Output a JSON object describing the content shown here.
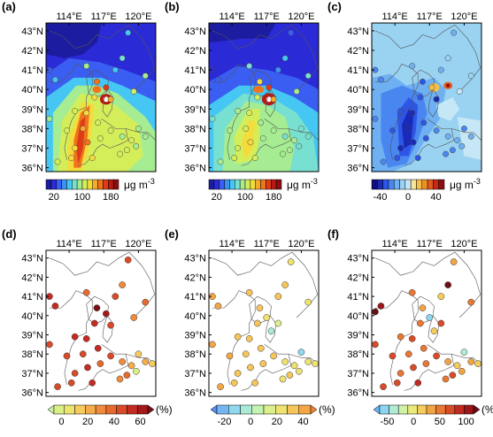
{
  "panels": [
    {
      "label": "(a)",
      "kind": "field",
      "lon_ticks": [
        "114°E",
        "117°E",
        "120°E"
      ],
      "lat_ticks": [
        "43°N",
        "42°N",
        "41°N",
        "40°N",
        "39°N",
        "38°N",
        "37°N",
        "36°N"
      ],
      "colorbar": {
        "ticks": [
          "20",
          "100",
          "180"
        ],
        "unit_text": "μg m",
        "unit_exp": "-3",
        "colors": [
          "#1c1ca0",
          "#2a2ad6",
          "#3a5ef2",
          "#3c92f4",
          "#46c6f2",
          "#78e0d0",
          "#a6ec92",
          "#d4ee5a",
          "#f4dc3c",
          "#f6aa2a",
          "#f0741e",
          "#dc3c16",
          "#b81a12",
          "#8a0e12"
        ],
        "style": "boxes"
      }
    },
    {
      "label": "(b)",
      "kind": "field",
      "lon_ticks": [
        "114°E",
        "117°E",
        "120°E"
      ],
      "lat_ticks": [
        "43°N",
        "42°N",
        "41°N",
        "40°N",
        "39°N",
        "38°N",
        "37°N",
        "36°N"
      ],
      "colorbar": {
        "ticks": [
          "20",
          "100",
          "180"
        ],
        "unit_text": "μg m",
        "unit_exp": "-3",
        "colors": [
          "#1c1ca0",
          "#2a2ad6",
          "#3a5ef2",
          "#3c92f4",
          "#46c6f2",
          "#78e0d0",
          "#a6ec92",
          "#d4ee5a",
          "#f4dc3c",
          "#f6aa2a",
          "#f0741e",
          "#dc3c16",
          "#b81a12",
          "#8a0e12"
        ],
        "style": "boxes"
      }
    },
    {
      "label": "(c)",
      "kind": "field",
      "lon_ticks": [
        "114°E",
        "117°E",
        "120°E"
      ],
      "lat_ticks": [
        "43°N",
        "42°N",
        "41°N",
        "40°N",
        "39°N",
        "38°N",
        "37°N",
        "36°N"
      ],
      "colorbar": {
        "ticks": [
          "-40",
          "0",
          "40"
        ],
        "unit_text": "μg m",
        "unit_exp": "-3",
        "colors": [
          "#10107a",
          "#1a2ab8",
          "#2e56e6",
          "#4a86f0",
          "#6eb0f2",
          "#9ad2f2",
          "#c6e8f6",
          "#f6e49a",
          "#f4c04a",
          "#ee902a",
          "#e05a1e",
          "#c42816",
          "#8a0e10"
        ],
        "style": "boxes"
      }
    },
    {
      "label": "(d)",
      "kind": "points",
      "lon_ticks": [
        "114°E",
        "117°E",
        "120°E"
      ],
      "lat_ticks": [
        "43°N",
        "42°N",
        "41°N",
        "40°N",
        "39°N",
        "38°N",
        "37°N",
        "36°N"
      ],
      "colorbar": {
        "ticks": [
          "0",
          "20",
          "40",
          "60"
        ],
        "unit_text": "(%)",
        "colors": [
          "#c8f2a8",
          "#dcef86",
          "#eee470",
          "#f6cc5c",
          "#f6ac4c",
          "#f08a3c",
          "#e66a30",
          "#d84a28",
          "#c42c22",
          "#a41a1c",
          "#7c0e16"
        ],
        "style": "triangles"
      }
    },
    {
      "label": "(e)",
      "kind": "points",
      "lon_ticks": [
        "114°E",
        "117°E",
        "120°E"
      ],
      "lat_ticks": [
        "43°N",
        "42°N",
        "41°N",
        "40°N",
        "39°N",
        "38°N",
        "37°N",
        "36°N"
      ],
      "colorbar": {
        "ticks": [
          "-20",
          "0",
          "20",
          "40"
        ],
        "unit_text": "(%)",
        "colors": [
          "#5a8ef0",
          "#74b6f2",
          "#90d8f0",
          "#a8ecd8",
          "#c4f2b0",
          "#dcf08c",
          "#eee270",
          "#f6c65a",
          "#f4a646",
          "#ec8234"
        ],
        "style": "triangles"
      }
    },
    {
      "label": "(f)",
      "kind": "points",
      "lon_ticks": [
        "114°E",
        "117°E",
        "120°E"
      ],
      "lat_ticks": [
        "43°N",
        "42°N",
        "41°N",
        "40°N",
        "39°N",
        "38°N",
        "37°N",
        "36°N"
      ],
      "colorbar": {
        "ticks": [
          "-50",
          "0",
          "50",
          "100"
        ],
        "unit_text": "(%)",
        "colors": [
          "#6ab2f2",
          "#8cd4f0",
          "#b0ecd4",
          "#d0f2a4",
          "#e8ea7a",
          "#f6cc5c",
          "#f2a444",
          "#e87834",
          "#d84c28",
          "#c02a20",
          "#9c161a",
          "#6e0c14"
        ],
        "style": "triangles"
      }
    }
  ],
  "stations": {
    "d": [
      {
        "lon": 119.1,
        "lat": 42.9,
        "color": "#d84a28"
      },
      {
        "lon": 112.3,
        "lat": 41.0,
        "color": "#c42c22"
      },
      {
        "lon": 115.5,
        "lat": 41.2,
        "color": "#e66a30"
      },
      {
        "lon": 118.6,
        "lat": 41.6,
        "color": "#f08a3c"
      },
      {
        "lon": 118.0,
        "lat": 41.0,
        "color": "#d84a28"
      },
      {
        "lon": 112.8,
        "lat": 40.5,
        "color": "#c42c22"
      },
      {
        "lon": 116.4,
        "lat": 40.4,
        "color": "#7c0e16"
      },
      {
        "lon": 117.2,
        "lat": 40.1,
        "color": "#a41a1c"
      },
      {
        "lon": 116.2,
        "lat": 39.6,
        "color": "#c42c22"
      },
      {
        "lon": 117.6,
        "lat": 39.5,
        "color": "#d84a28"
      },
      {
        "lon": 119.6,
        "lat": 39.9,
        "color": "#f08a3c"
      },
      {
        "lon": 120.6,
        "lat": 40.7,
        "color": "#e66a30"
      },
      {
        "lon": 112.3,
        "lat": 38.5,
        "color": "#d84a28"
      },
      {
        "lon": 114.5,
        "lat": 38.9,
        "color": "#c42c22"
      },
      {
        "lon": 115.5,
        "lat": 38.8,
        "color": "#c42c22"
      },
      {
        "lon": 113.8,
        "lat": 37.9,
        "color": "#d84a28"
      },
      {
        "lon": 115.2,
        "lat": 38.0,
        "color": "#d84a28"
      },
      {
        "lon": 116.5,
        "lat": 38.3,
        "color": "#c42c22"
      },
      {
        "lon": 117.6,
        "lat": 37.9,
        "color": "#d84a28"
      },
      {
        "lon": 114.5,
        "lat": 37.0,
        "color": "#d84a28"
      },
      {
        "lon": 115.6,
        "lat": 37.3,
        "color": "#c42c22"
      },
      {
        "lon": 116.7,
        "lat": 37.5,
        "color": "#e66a30"
      },
      {
        "lon": 118.6,
        "lat": 37.6,
        "color": "#f08a3c"
      },
      {
        "lon": 119.4,
        "lat": 37.4,
        "color": "#f6ac4c"
      },
      {
        "lon": 120.0,
        "lat": 38.0,
        "color": "#f6cc5c"
      },
      {
        "lon": 120.6,
        "lat": 37.6,
        "color": "#f6ac4c"
      },
      {
        "lon": 118.4,
        "lat": 36.7,
        "color": "#f08a3c"
      },
      {
        "lon": 119.0,
        "lat": 36.9,
        "color": "#e66a30"
      },
      {
        "lon": 119.8,
        "lat": 37.1,
        "color": "#dcef86"
      },
      {
        "lon": 121.2,
        "lat": 37.5,
        "color": "#f6cc5c"
      },
      {
        "lon": 113.0,
        "lat": 36.3,
        "color": "#d84a28"
      },
      {
        "lon": 114.2,
        "lat": 36.5,
        "color": "#d84a28"
      },
      {
        "lon": 116.0,
        "lat": 36.5,
        "color": "#c42c22"
      }
    ],
    "e": [
      {
        "lon": 119.1,
        "lat": 42.8,
        "color": "#eee270"
      },
      {
        "lon": 112.3,
        "lat": 41.0,
        "color": "#f4a646"
      },
      {
        "lon": 115.5,
        "lat": 41.2,
        "color": "#f6c65a"
      },
      {
        "lon": 118.6,
        "lat": 41.6,
        "color": "#f6c65a"
      },
      {
        "lon": 118.0,
        "lat": 41.0,
        "color": "#f6c65a"
      },
      {
        "lon": 112.8,
        "lat": 40.5,
        "color": "#f4a646"
      },
      {
        "lon": 116.4,
        "lat": 40.4,
        "color": "#f6c65a"
      },
      {
        "lon": 117.0,
        "lat": 39.9,
        "color": "#eee270"
      },
      {
        "lon": 116.2,
        "lat": 39.6,
        "color": "#f6c65a"
      },
      {
        "lon": 117.4,
        "lat": 39.2,
        "color": "#a8ecd8"
      },
      {
        "lon": 118.0,
        "lat": 39.6,
        "color": "#dcf08c"
      },
      {
        "lon": 120.6,
        "lat": 40.7,
        "color": "#eee270"
      },
      {
        "lon": 112.3,
        "lat": 38.5,
        "color": "#f4a646"
      },
      {
        "lon": 114.5,
        "lat": 38.9,
        "color": "#f6c65a"
      },
      {
        "lon": 115.5,
        "lat": 38.8,
        "color": "#f6c65a"
      },
      {
        "lon": 113.8,
        "lat": 37.9,
        "color": "#f4a646"
      },
      {
        "lon": 115.2,
        "lat": 38.0,
        "color": "#f6c65a"
      },
      {
        "lon": 116.5,
        "lat": 38.3,
        "color": "#f6c65a"
      },
      {
        "lon": 117.6,
        "lat": 37.9,
        "color": "#f6c65a"
      },
      {
        "lon": 114.5,
        "lat": 37.0,
        "color": "#f6c65a"
      },
      {
        "lon": 115.6,
        "lat": 37.3,
        "color": "#f6c65a"
      },
      {
        "lon": 116.7,
        "lat": 37.5,
        "color": "#f6c65a"
      },
      {
        "lon": 118.6,
        "lat": 37.6,
        "color": "#eee270"
      },
      {
        "lon": 119.4,
        "lat": 37.4,
        "color": "#eee270"
      },
      {
        "lon": 120.0,
        "lat": 38.1,
        "color": "#90d8f0"
      },
      {
        "lon": 120.6,
        "lat": 37.6,
        "color": "#eee270"
      },
      {
        "lon": 118.4,
        "lat": 36.7,
        "color": "#eee270"
      },
      {
        "lon": 119.0,
        "lat": 36.9,
        "color": "#f6c65a"
      },
      {
        "lon": 119.8,
        "lat": 37.1,
        "color": "#eee270"
      },
      {
        "lon": 121.2,
        "lat": 37.5,
        "color": "#eee270"
      },
      {
        "lon": 113.0,
        "lat": 36.3,
        "color": "#f4a646"
      },
      {
        "lon": 114.2,
        "lat": 36.5,
        "color": "#f6c65a"
      },
      {
        "lon": 116.0,
        "lat": 36.5,
        "color": "#f6c65a"
      }
    ],
    "f": [
      {
        "lon": 119.1,
        "lat": 42.8,
        "color": "#f2a444"
      },
      {
        "lon": 112.3,
        "lat": 40.2,
        "color": "#6e0c14"
      },
      {
        "lon": 115.5,
        "lat": 41.2,
        "color": "#e87834"
      },
      {
        "lon": 118.6,
        "lat": 41.6,
        "color": "#6e0c14"
      },
      {
        "lon": 118.0,
        "lat": 41.0,
        "color": "#f6cc5c"
      },
      {
        "lon": 112.8,
        "lat": 40.5,
        "color": "#9c161a"
      },
      {
        "lon": 116.4,
        "lat": 40.4,
        "color": "#f2a444"
      },
      {
        "lon": 117.0,
        "lat": 39.9,
        "color": "#8cd4f0"
      },
      {
        "lon": 116.2,
        "lat": 39.6,
        "color": "#e87834"
      },
      {
        "lon": 117.4,
        "lat": 39.2,
        "color": "#f6cc5c"
      },
      {
        "lon": 118.0,
        "lat": 39.6,
        "color": "#d84c28"
      },
      {
        "lon": 120.6,
        "lat": 40.7,
        "color": "#e87834"
      },
      {
        "lon": 112.3,
        "lat": 38.5,
        "color": "#d84c28"
      },
      {
        "lon": 114.5,
        "lat": 38.9,
        "color": "#e87834"
      },
      {
        "lon": 115.5,
        "lat": 38.8,
        "color": "#d84c28"
      },
      {
        "lon": 113.8,
        "lat": 37.9,
        "color": "#d84c28"
      },
      {
        "lon": 115.2,
        "lat": 38.0,
        "color": "#e87834"
      },
      {
        "lon": 116.5,
        "lat": 38.3,
        "color": "#e87834"
      },
      {
        "lon": 117.6,
        "lat": 37.9,
        "color": "#d84c28"
      },
      {
        "lon": 114.5,
        "lat": 37.0,
        "color": "#e87834"
      },
      {
        "lon": 115.6,
        "lat": 37.3,
        "color": "#d84c28"
      },
      {
        "lon": 116.7,
        "lat": 37.5,
        "color": "#e87834"
      },
      {
        "lon": 118.6,
        "lat": 37.6,
        "color": "#f2a444"
      },
      {
        "lon": 119.4,
        "lat": 37.4,
        "color": "#f6cc5c"
      },
      {
        "lon": 120.0,
        "lat": 38.1,
        "color": "#b0ecd4"
      },
      {
        "lon": 120.6,
        "lat": 37.6,
        "color": "#f2a444"
      },
      {
        "lon": 118.4,
        "lat": 36.7,
        "color": "#e87834"
      },
      {
        "lon": 119.0,
        "lat": 36.9,
        "color": "#d84c28"
      },
      {
        "lon": 119.8,
        "lat": 37.1,
        "color": "#f2a444"
      },
      {
        "lon": 121.2,
        "lat": 37.5,
        "color": "#f6cc5c"
      },
      {
        "lon": 113.0,
        "lat": 36.3,
        "color": "#d84c28"
      },
      {
        "lon": 114.2,
        "lat": 36.5,
        "color": "#d84c28"
      },
      {
        "lon": 116.0,
        "lat": 36.5,
        "color": "#c02a20"
      }
    ]
  }
}
